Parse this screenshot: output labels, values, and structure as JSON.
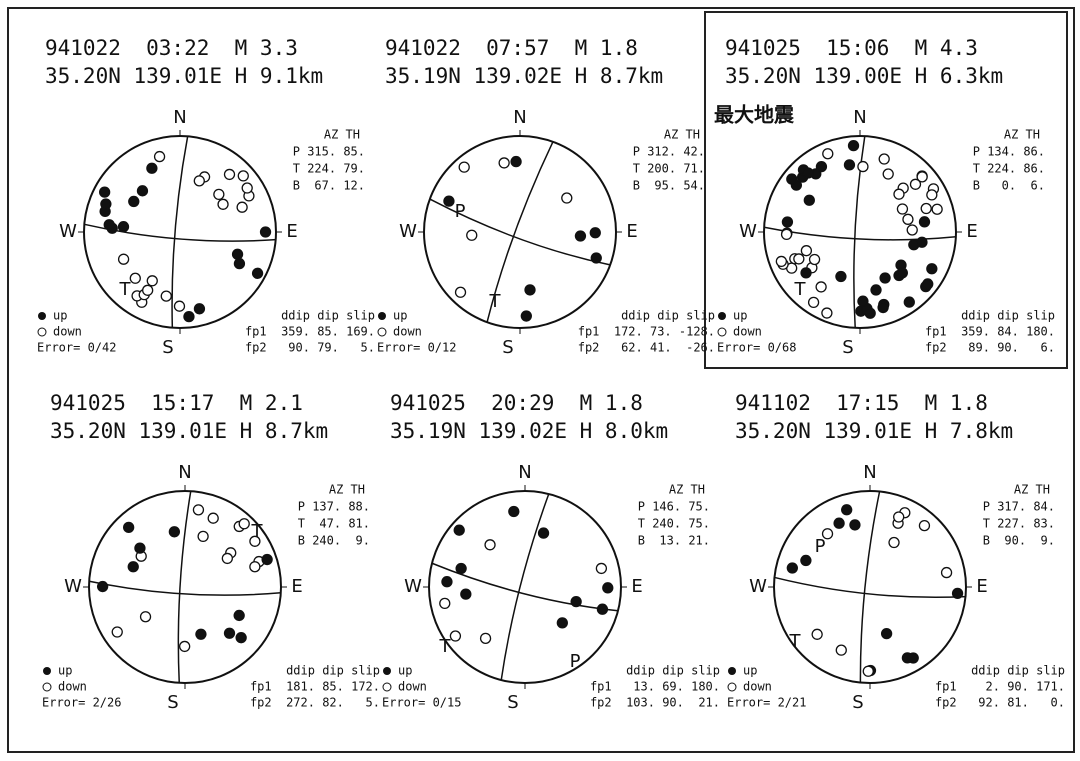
{
  "directions": {
    "N": "N",
    "S": "S",
    "W": "W",
    "E": "E"
  },
  "legend": {
    "up": "up",
    "down": "down"
  },
  "az_header": "AZ TH",
  "fp_header": "ddip dip slip",
  "largest_label": "最大地震",
  "panels": [
    {
      "line1": "941022  03:22  M 3.3",
      "line2": "35.20N 139.01E H 9.1km",
      "p": "P 315. 85.",
      "t": "T 224. 79.",
      "b": "B  67. 12.",
      "error": "Error= 0/42",
      "fp1": "fp1  359. 85. 169.",
      "fp2": "fp2   90. 79.   5.",
      "marks": [
        "T"
      ]
    },
    {
      "line1": "941022  07:57  M 1.8",
      "line2": "35.19N 139.02E H 8.7km",
      "p": "P 312. 42.",
      "t": "T 200. 71.",
      "b": "B  95. 54.",
      "error": "Error= 0/12",
      "fp1": "fp1  172. 73. -128.",
      "fp2": "fp2   62. 41.  -26.",
      "marks": [
        "P",
        "T"
      ]
    },
    {
      "line1": "941025  15:06  M 4.3",
      "line2": "35.20N 139.00E H 6.3km",
      "p": "P 134. 86.",
      "t": "T 224. 86.",
      "b": "B   0.  6.",
      "error": "Error= 0/68",
      "fp1": "fp1  359. 84. 180.",
      "fp2": "fp2   89. 90.   6.",
      "marks": [
        "T"
      ]
    },
    {
      "line1": "941025  15:17  M 2.1",
      "line2": "35.20N 139.01E H 8.7km",
      "p": "P 137. 88.",
      "t": "T  47. 81.",
      "b": "B 240.  9.",
      "error": "Error= 2/26",
      "fp1": "fp1  181. 85. 172.",
      "fp2": "fp2  272. 82.   5.",
      "marks": [
        "T"
      ]
    },
    {
      "line1": "941025  20:29  M 1.8",
      "line2": "35.19N 139.02E H 8.0km",
      "p": "P 146. 75.",
      "t": "T 240. 75.",
      "b": "B  13. 21.",
      "error": "Error= 0/15",
      "fp1": "fp1   13. 69. 180.",
      "fp2": "fp2  103. 90.  21.",
      "marks": [
        "P",
        "T"
      ]
    },
    {
      "line1": "941102  17:15  M 1.8",
      "line2": "35.20N 139.01E H 7.8km",
      "p": "P 317. 84.",
      "t": "T 227. 83.",
      "b": "B  90.  9.",
      "error": "Error= 2/21",
      "fp1": "fp1    2. 90. 171.",
      "fp2": "fp2   92. 81.   0.",
      "marks": [
        "P",
        "T"
      ]
    }
  ]
}
